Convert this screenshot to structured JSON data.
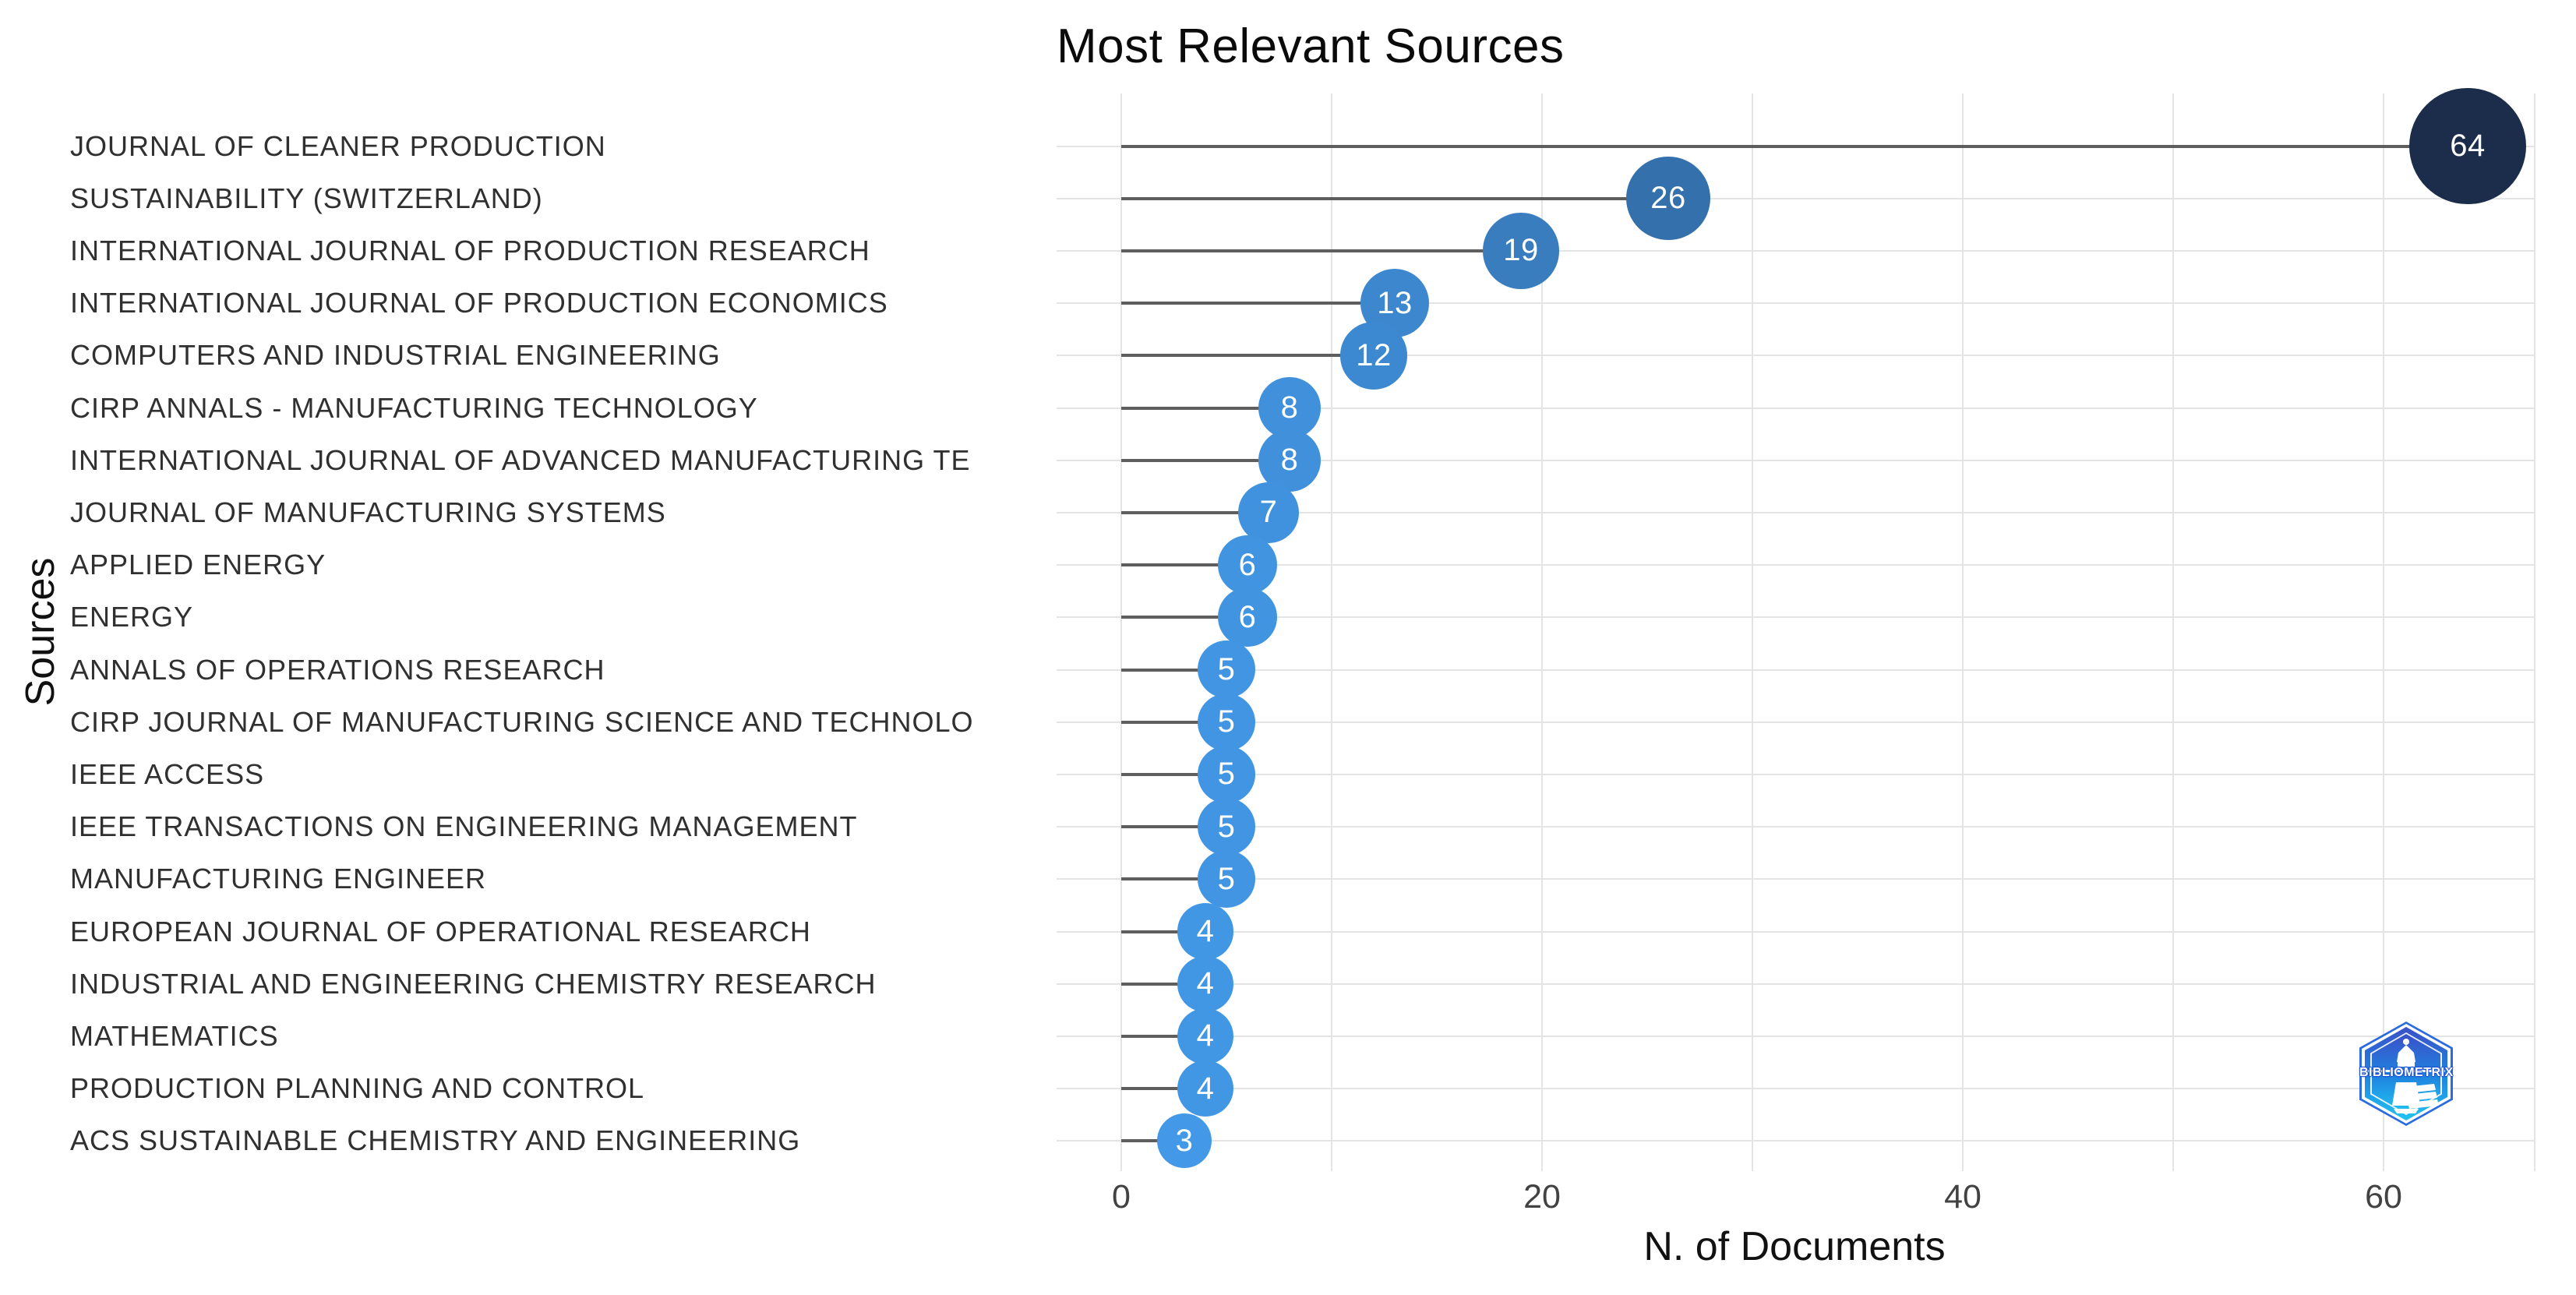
{
  "title": "Most Relevant Sources",
  "chart_data": {
    "type": "scatter",
    "style": "lollipop-dot-plot",
    "orientation": "horizontal",
    "title": "Most Relevant Sources",
    "xlabel": "N. of Documents",
    "ylabel": "Sources",
    "xlim": [
      -3,
      67
    ],
    "x_ticks": [
      0,
      20,
      40,
      60
    ],
    "x_gridlines": [
      0,
      10,
      20,
      30,
      40,
      50,
      60
    ],
    "grid": true,
    "legend": false,
    "categories": [
      "JOURNAL OF CLEANER PRODUCTION",
      "SUSTAINABILITY (SWITZERLAND)",
      "INTERNATIONAL JOURNAL OF PRODUCTION RESEARCH",
      "INTERNATIONAL JOURNAL OF PRODUCTION ECONOMICS",
      "COMPUTERS AND INDUSTRIAL ENGINEERING",
      "CIRP ANNALS - MANUFACTURING TECHNOLOGY",
      "INTERNATIONAL JOURNAL OF ADVANCED MANUFACTURING TE",
      "JOURNAL OF MANUFACTURING SYSTEMS",
      "APPLIED ENERGY",
      "ENERGY",
      "ANNALS OF OPERATIONS RESEARCH",
      "CIRP JOURNAL OF MANUFACTURING SCIENCE AND TECHNOLO",
      "IEEE ACCESS",
      "IEEE TRANSACTIONS ON ENGINEERING MANAGEMENT",
      "MANUFACTURING ENGINEER",
      "EUROPEAN JOURNAL OF OPERATIONAL RESEARCH",
      "INDUSTRIAL AND ENGINEERING CHEMISTRY RESEARCH",
      "MATHEMATICS",
      "PRODUCTION PLANNING AND CONTROL",
      "ACS SUSTAINABLE CHEMISTRY AND ENGINEERING"
    ],
    "values": [
      64,
      26,
      19,
      13,
      12,
      8,
      8,
      7,
      6,
      6,
      5,
      5,
      5,
      5,
      5,
      4,
      4,
      4,
      4,
      3
    ]
  },
  "style": {
    "dot_color_low": "#4399E8",
    "dot_color_high": "#1B2D4A",
    "dot_label_color": "#FFFFFF",
    "stem_color": "#5E5E5E",
    "grid_color": "#E4E4E4",
    "category_label_color": "#303030",
    "tick_label_color": "#424242",
    "title_color": "#0A0A0A",
    "axis_title_color": "#111111"
  },
  "logo": {
    "text": "BIBLIOMETRIX"
  }
}
